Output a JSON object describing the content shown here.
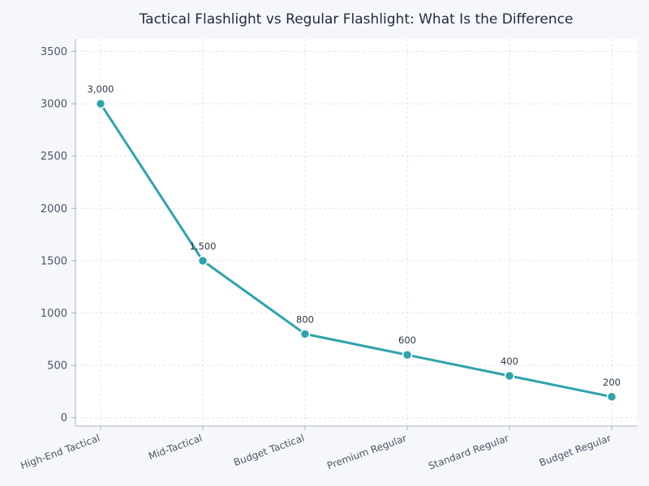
{
  "chart_data": {
    "type": "line",
    "title": "Tactical Flashlight vs Regular Flashlight: What Is the Difference",
    "xlabel": "",
    "ylabel": "",
    "categories": [
      "High-End Tactical",
      "Mid-Tactical",
      "Budget Tactical",
      "Premium Regular",
      "Standard Regular",
      "Budget Regular"
    ],
    "series": [
      {
        "values": [
          3000,
          1500,
          800,
          600,
          400,
          200
        ],
        "data_labels": [
          "3,000",
          "1,500",
          "800",
          "600",
          "400",
          "200"
        ]
      }
    ],
    "ylim": [
      -80,
      3620
    ],
    "yticks": [
      0,
      500,
      1000,
      1500,
      2000,
      2500,
      3000,
      3500
    ],
    "ytick_labels": [
      "0",
      "500",
      "1000",
      "1500",
      "2000",
      "2500",
      "3000",
      "3500"
    ],
    "grid": true,
    "legend": "none",
    "colors": {
      "line": "#2ea3ad",
      "marker_fill": "#2ea3ad",
      "marker_stroke": "#ffffff",
      "plot_background": "#ffffff",
      "page_background": "#f5f7fa"
    }
  }
}
